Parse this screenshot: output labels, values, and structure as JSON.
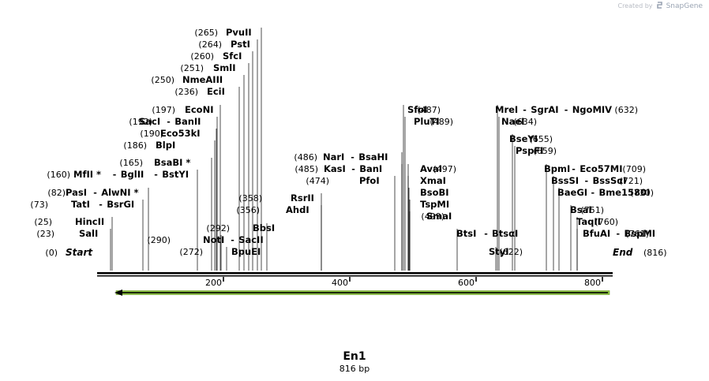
{
  "watermark": {
    "prefix": "Created by",
    "brand": "SnapGene"
  },
  "sequence": {
    "name": "En1",
    "length_label": "816 bp",
    "length": 816
  },
  "start_label": {
    "name": "Start",
    "pos": "(0)"
  },
  "end_label": {
    "name": "End",
    "pos": "(816)"
  },
  "ruler_ticks": [
    "200",
    "400",
    "600",
    "800"
  ],
  "feature_arrow": {
    "color": "#8dc63f",
    "direction": "reverse"
  },
  "sites": [
    {
      "pos": "(265)",
      "names": [
        "PvuII"
      ]
    },
    {
      "pos": "(264)",
      "names": [
        "PstI"
      ]
    },
    {
      "pos": "(260)",
      "names": [
        "SfcI"
      ]
    },
    {
      "pos": "(251)",
      "names": [
        "SmlI"
      ]
    },
    {
      "pos": "(250)",
      "names": [
        "NmeAIII"
      ]
    },
    {
      "pos": "(236)",
      "names": [
        "EciI"
      ]
    },
    {
      "pos": "(197)",
      "names": [
        "EcoNI"
      ]
    },
    {
      "pos": "(192)",
      "names": [
        "SacI",
        "BanII"
      ]
    },
    {
      "pos": "(190)",
      "names": [
        "Eco53kI"
      ]
    },
    {
      "pos": "(186)",
      "names": [
        "BlpI"
      ]
    },
    {
      "pos": "(165)",
      "names": [
        "BsaBI *"
      ]
    },
    {
      "pos": "(160)",
      "names": [
        "MfII *",
        "BglII",
        "BstYI"
      ]
    },
    {
      "pos": "(82)",
      "names": [
        "PasI",
        "AlwNI *"
      ]
    },
    {
      "pos": "(73)",
      "names": [
        "TatI",
        "BsrGI"
      ]
    },
    {
      "pos": "(25)",
      "names": [
        "HincII"
      ]
    },
    {
      "pos": "(23)",
      "names": [
        "SalI"
      ]
    },
    {
      "pos": "(290)",
      "names": [
        "NotI",
        "SacII"
      ]
    },
    {
      "pos": "(272)",
      "names": [
        "BpuEI"
      ]
    },
    {
      "pos": "(292)",
      "names": [
        "BbsI"
      ]
    },
    {
      "pos": "(356)",
      "names": [
        "AhdI"
      ]
    },
    {
      "pos": "(358)",
      "names": [
        "RsrII"
      ]
    },
    {
      "pos": "(486)",
      "names": [
        "NarI",
        "BsaHI"
      ]
    },
    {
      "pos": "(485)",
      "names": [
        "KasI",
        "BanI"
      ]
    },
    {
      "pos": "(474)",
      "names": [
        "PfoI"
      ]
    },
    {
      "pos": "(487)",
      "names": [
        "SfoI"
      ]
    },
    {
      "pos": "(489)",
      "names": [
        "PluTI"
      ]
    },
    {
      "pos": "(497)",
      "names": [
        "AvaI"
      ]
    },
    {
      "pos": "",
      "names": [
        "XmaI"
      ]
    },
    {
      "pos": "",
      "names": [
        "BsoBI"
      ]
    },
    {
      "pos": "",
      "names": [
        "TspMI"
      ]
    },
    {
      "pos": "(499)",
      "names": [
        "SmaI"
      ]
    },
    {
      "pos": "(571)",
      "names": [
        "BtsI",
        "BtsαI"
      ]
    },
    {
      "pos": "(622)",
      "names": [
        "StyI"
      ]
    },
    {
      "pos": "(632)",
      "names": [
        "MreI",
        "SgrAI",
        "NgoMIV"
      ]
    },
    {
      "pos": "(634)",
      "names": [
        "NaeI"
      ]
    },
    {
      "pos": "(655)",
      "names": [
        "BseYI"
      ]
    },
    {
      "pos": "(659)",
      "names": [
        "PspFI"
      ]
    },
    {
      "pos": "(709)",
      "names": [
        "BpmI",
        "Eco57MI"
      ]
    },
    {
      "pos": "(721)",
      "names": [
        "BssSI",
        "BssSαI"
      ]
    },
    {
      "pos": "(730)",
      "names": [
        "BaeGI",
        "Bme1580I"
      ]
    },
    {
      "pos": "(751)",
      "names": [
        "BsaI"
      ]
    },
    {
      "pos": "(760)",
      "names": [
        "TaqII"
      ]
    },
    {
      "pos": "(761)",
      "names": [
        "BfuAI",
        "BspMI"
      ]
    }
  ]
}
